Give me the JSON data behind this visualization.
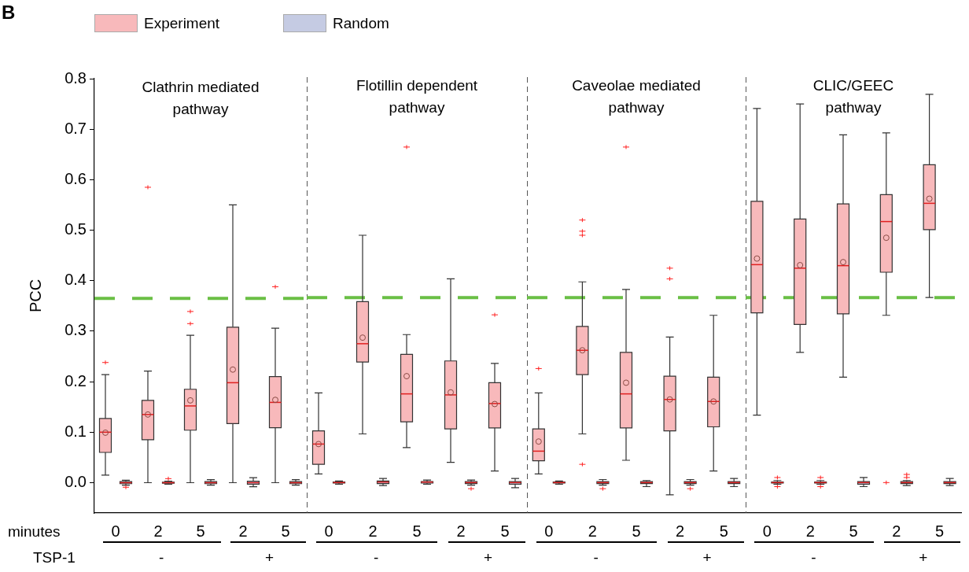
{
  "chart_data": [
    {
      "type": "box",
      "title": "Clathrin mediated pathway",
      "xlabel": "minutes",
      "ylabel": "PCC",
      "legend": "top right",
      "annotations": [
        "B",
        "TSP-1",
        "-",
        "+"
      ],
      "categories": [
        "0",
        "2",
        "5",
        "2",
        "5"
      ],
      "ylim": [
        -0.06,
        0.8
      ],
      "yticks": [
        {
          "value": 0,
          "label": "0.0"
        },
        0.1,
        0.2,
        0.3,
        0.4,
        0.5,
        0.6,
        0.7,
        0.8
      ],
      "ref_lines": [
        {
          "axis": "y",
          "value": 0.365,
          "color": "#6abf45",
          "line_style": "dashed"
        }
      ],
      "series": [
        {
          "name": "Experiment",
          "color": "#f8b9bb",
          "boxes": [
            {
              "low": 0.015,
              "q1": 0.06,
              "median": 0.1,
              "q3": 0.127,
              "high": 0.214,
              "mean": 0.099,
              "outliers": [
                0.238
              ]
            },
            {
              "low": 0,
              "q1": 0.085,
              "median": 0.135,
              "q3": 0.163,
              "high": 0.221,
              "mean": 0.135,
              "outliers": [
                0.585
              ]
            },
            {
              "low": 0,
              "q1": 0.104,
              "median": 0.152,
              "q3": 0.185,
              "high": 0.292,
              "mean": 0.163,
              "outliers": [
                0.339,
                0.315
              ]
            },
            {
              "low": 0,
              "q1": 0.117,
              "median": 0.198,
              "q3": 0.308,
              "high": 0.55,
              "mean": 0.224
            },
            {
              "low": 0,
              "q1": 0.109,
              "median": 0.159,
              "q3": 0.21,
              "high": 0.306,
              "mean": 0.164,
              "outliers": [
                0.388
              ]
            }
          ]
        },
        {
          "name": "Random",
          "color": "#c5cbe3",
          "boxes": [
            {
              "low": -0.005,
              "q1": -0.002,
              "median": 0,
              "q3": 0.002,
              "high": 0.005,
              "outliers": [
                -0.009
              ]
            },
            {
              "low": -0.003,
              "q1": -0.001,
              "median": 0,
              "q3": 0.001,
              "high": 0.003,
              "outliers": [
                0.008
              ]
            },
            {
              "low": -0.005,
              "q1": -0.002,
              "median": 0,
              "q3": 0.002,
              "high": 0.006
            },
            {
              "low": -0.008,
              "q1": -0.003,
              "median": 0,
              "q3": 0.003,
              "high": 0.01
            },
            {
              "low": -0.005,
              "q1": -0.002,
              "median": 0,
              "q3": 0.002,
              "high": 0.006
            }
          ]
        }
      ]
    },
    {
      "type": "box",
      "title": "Flotillin dependent pathway",
      "annotations": [
        "-",
        "+"
      ],
      "tick_labels": "x",
      "categories": [
        "0",
        "2",
        "5",
        "2",
        "5"
      ],
      "ylim": [
        -0.06,
        0.8
      ],
      "ref_lines": [
        {
          "axis": "y",
          "value": 0.365,
          "color": "#6abf45",
          "line_style": "dashed"
        }
      ],
      "series": [
        {
          "color": "#f8b9bb",
          "boxes": [
            {
              "low": 0.017,
              "q1": 0.036,
              "median": 0.076,
              "q3": 0.102,
              "high": 0.177,
              "mean": 0.076
            },
            {
              "low": 0.096,
              "q1": 0.238,
              "median": 0.274,
              "q3": 0.357,
              "high": 0.488,
              "mean": 0.286
            },
            {
              "low": 0.069,
              "q1": 0.12,
              "median": 0.175,
              "q3": 0.253,
              "high": 0.292,
              "mean": 0.21,
              "outliers": [
                0.662
              ]
            },
            {
              "low": 0.04,
              "q1": 0.106,
              "median": 0.173,
              "q3": 0.24,
              "high": 0.402,
              "mean": 0.178
            },
            {
              "low": 0.023,
              "q1": 0.108,
              "median": 0.156,
              "q3": 0.197,
              "high": 0.235,
              "mean": 0.155,
              "outliers": [
                0.331
              ]
            }
          ]
        },
        {
          "color": "#c5cbe3",
          "boxes": [
            {
              "low": -0.003,
              "q1": -0.001,
              "median": 0,
              "q3": 0.001,
              "high": 0.003
            },
            {
              "low": -0.006,
              "q1": -0.002,
              "median": 0.001,
              "q3": 0.003,
              "high": 0.008
            },
            {
              "low": -0.003,
              "q1": -0.001,
              "median": 0.001,
              "q3": 0.002,
              "high": 0.005
            },
            {
              "low": -0.005,
              "q1": -0.002,
              "median": 0,
              "q3": 0.002,
              "high": 0.005,
              "outliers": [
                -0.012
              ]
            },
            {
              "low": -0.01,
              "q1": -0.003,
              "median": 0,
              "q3": 0.002,
              "high": 0.008
            }
          ]
        }
      ]
    },
    {
      "type": "box",
      "title": "Caveolae mediated pathway",
      "annotations": [
        "-",
        "+"
      ],
      "tick_labels": "x",
      "categories": [
        "0",
        "2",
        "5",
        "2",
        "5"
      ],
      "ylim": [
        -0.06,
        0.8
      ],
      "ref_lines": [
        {
          "axis": "y",
          "value": 0.365,
          "color": "#6abf45",
          "line_style": "dashed"
        }
      ],
      "series": [
        {
          "color": "#f8b9bb",
          "boxes": [
            {
              "low": 0.017,
              "q1": 0.043,
              "median": 0.062,
              "q3": 0.106,
              "high": 0.177,
              "mean": 0.081,
              "outliers": [
                0.225
              ]
            },
            {
              "low": 0.096,
              "q1": 0.213,
              "median": 0.261,
              "q3": 0.308,
              "high": 0.396,
              "mean": 0.261,
              "outliers": [
                0.518,
                0.496,
                0.488,
                0.036
              ]
            },
            {
              "low": 0.044,
              "q1": 0.108,
              "median": 0.175,
              "q3": 0.257,
              "high": 0.381,
              "mean": 0.197,
              "outliers": [
                0.662
              ]
            },
            {
              "low": -0.024,
              "q1": 0.102,
              "median": 0.164,
              "q3": 0.21,
              "high": 0.287,
              "mean": 0.164,
              "outliers": [
                0.423,
                0.402
              ]
            },
            {
              "low": 0.023,
              "q1": 0.11,
              "median": 0.16,
              "q3": 0.208,
              "high": 0.33,
              "mean": 0.16
            }
          ]
        },
        {
          "color": "#c5cbe3",
          "boxes": [
            {
              "low": -0.003,
              "q1": -0.001,
              "median": 0,
              "q3": 0.001,
              "high": 0.003
            },
            {
              "low": -0.005,
              "q1": -0.002,
              "median": 0,
              "q3": 0.002,
              "high": 0.006,
              "outliers": [
                -0.012
              ]
            },
            {
              "low": -0.008,
              "q1": -0.002,
              "median": 0,
              "q3": 0.002,
              "high": 0.004
            },
            {
              "low": -0.005,
              "q1": -0.002,
              "median": 0,
              "q3": 0.002,
              "high": 0.006,
              "outliers": [
                -0.012
              ]
            },
            {
              "low": -0.008,
              "q1": -0.002,
              "median": 0,
              "q3": 0.002,
              "high": 0.008
            }
          ]
        }
      ]
    },
    {
      "type": "box",
      "title": "CLIC/GEEC pathway",
      "annotations": [
        "-",
        "+"
      ],
      "tick_labels": "x",
      "categories": [
        "0",
        "2",
        "5",
        "2",
        "5"
      ],
      "ylim": [
        -0.06,
        0.8
      ],
      "ref_lines": [
        {
          "axis": "y",
          "value": 0.365,
          "color": "#6abf45",
          "line_style": "dashed"
        }
      ],
      "series": [
        {
          "color": "#f8b9bb",
          "boxes": [
            {
              "low": 0.133,
              "q1": 0.335,
              "median": 0.43,
              "q3": 0.555,
              "high": 0.738,
              "mean": 0.442
            },
            {
              "low": 0.257,
              "q1": 0.312,
              "median": 0.423,
              "q3": 0.52,
              "high": 0.747,
              "mean": 0.429
            },
            {
              "low": 0.208,
              "q1": 0.333,
              "median": 0.428,
              "q3": 0.55,
              "high": 0.686,
              "mean": 0.435
            },
            {
              "low": 0.33,
              "q1": 0.415,
              "median": 0.515,
              "q3": 0.568,
              "high": 0.69,
              "mean": 0.483,
              "outliers": [
                0
              ]
            },
            {
              "low": 0.365,
              "q1": 0.499,
              "median": 0.551,
              "q3": 0.627,
              "high": 0.766,
              "mean": 0.56
            }
          ]
        },
        {
          "color": "#c5cbe3",
          "boxes": [
            {
              "low": -0.003,
              "q1": -0.001,
              "median": 0,
              "q3": 0.001,
              "high": 0.004,
              "outliers": [
                0.01,
                -0.008
              ]
            },
            {
              "low": -0.003,
              "q1": -0.001,
              "median": 0,
              "q3": 0.001,
              "high": 0.004,
              "outliers": [
                0.01,
                -0.008
              ]
            },
            {
              "low": -0.008,
              "q1": -0.003,
              "median": 0,
              "q3": 0.002,
              "high": 0.01
            },
            {
              "low": -0.006,
              "q1": -0.002,
              "median": 0,
              "q3": 0.002,
              "high": 0.004,
              "outliers": [
                0.01,
                0.016
              ]
            },
            {
              "low": -0.006,
              "q1": -0.002,
              "median": 0,
              "q3": 0.002,
              "high": 0.008
            }
          ]
        }
      ]
    }
  ]
}
